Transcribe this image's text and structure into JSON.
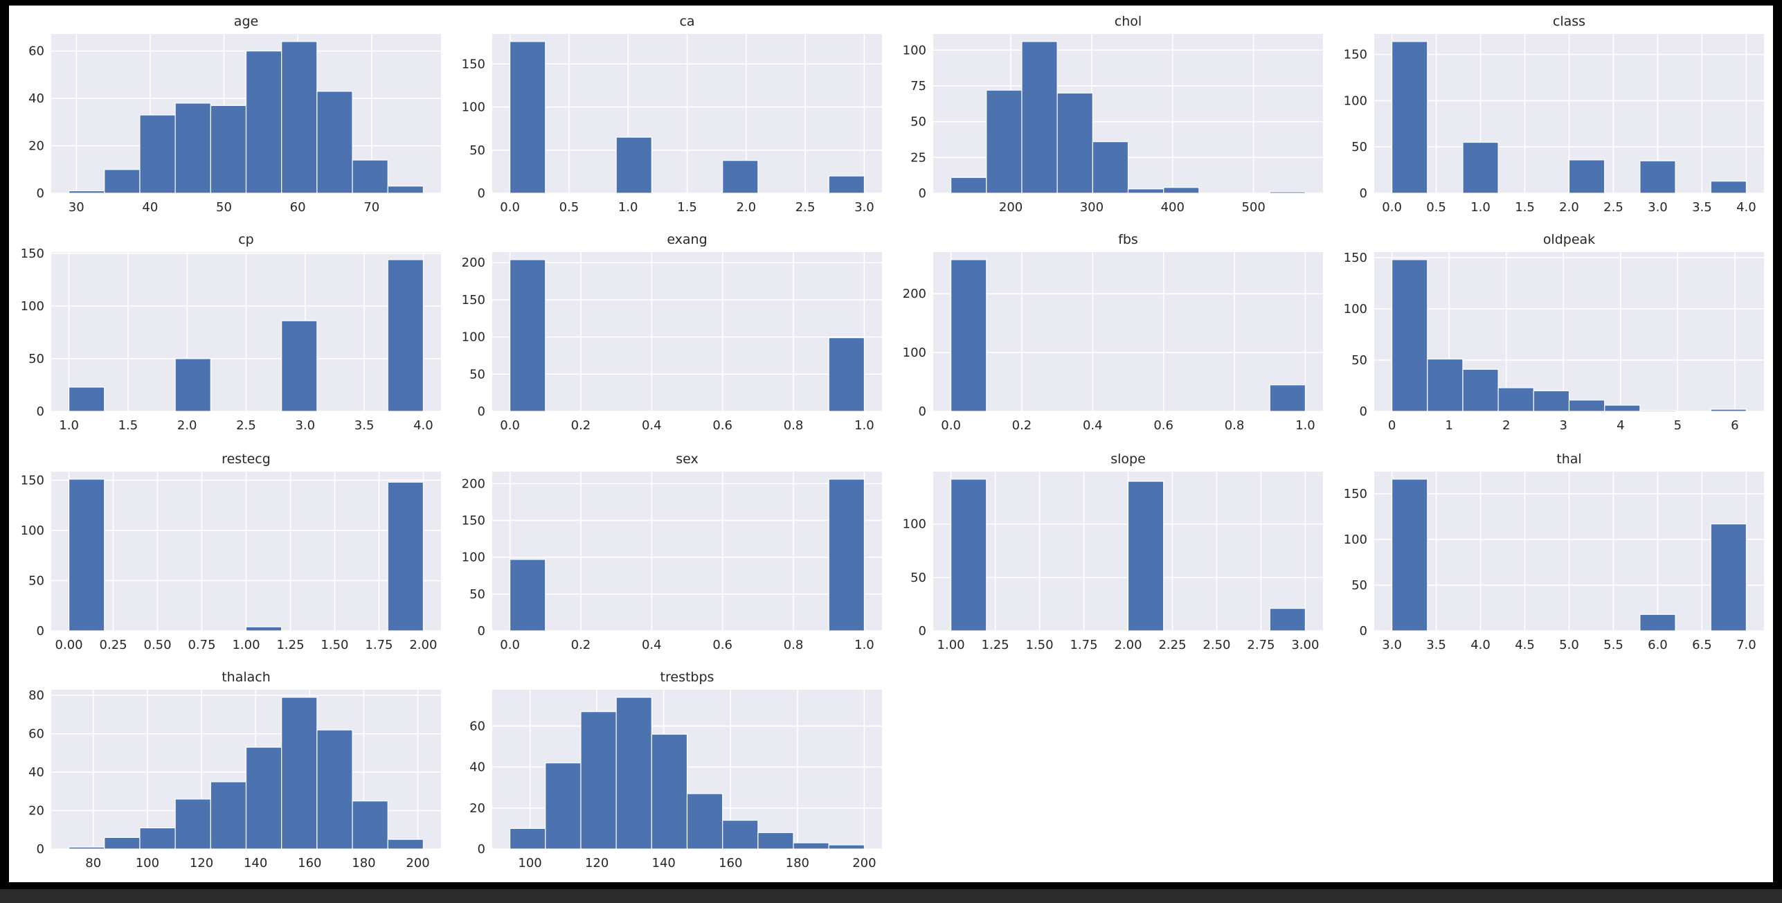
{
  "chart_data": [
    {
      "type": "histogram",
      "title": "age",
      "bins": [
        29,
        33.8,
        38.6,
        43.4,
        48.2,
        53,
        57.8,
        62.6,
        67.4,
        72.2,
        77
      ],
      "counts": [
        1,
        10,
        33,
        38,
        37,
        60,
        64,
        43,
        14,
        3
      ],
      "color": "#4c72b0",
      "grid": true,
      "xlim": [
        26.6,
        79.4
      ],
      "ylim": [
        0,
        67.2
      ],
      "xticks": [
        30,
        40,
        50,
        60,
        70
      ],
      "yticks": [
        0,
        20,
        40,
        60
      ]
    },
    {
      "type": "histogram",
      "title": "ca",
      "bins": [
        0,
        0.3,
        0.6,
        0.9,
        1.2,
        1.5,
        1.8,
        2.1,
        2.4,
        2.7,
        3
      ],
      "counts": [
        176,
        0,
        0,
        65,
        0,
        0,
        38,
        0,
        0,
        20
      ],
      "color": "#4c72b0",
      "grid": true,
      "xlim": [
        -0.15,
        3.15
      ],
      "ylim": [
        0,
        184.8
      ],
      "xticks": [
        {
          "value": 0,
          "label": "0.0"
        },
        0.5,
        {
          "value": 1,
          "label": "1.0"
        },
        1.5,
        {
          "value": 2,
          "label": "2.0"
        },
        2.5,
        {
          "value": 3,
          "label": "3.0"
        }
      ],
      "yticks": [
        0,
        50,
        100,
        150
      ]
    },
    {
      "type": "histogram",
      "title": "chol",
      "bins": [
        126,
        169.8,
        213.6,
        257.4,
        301.2,
        345,
        388.8,
        432.6,
        476.4,
        520.2,
        564
      ],
      "counts": [
        11,
        72,
        106,
        70,
        36,
        3,
        4,
        0,
        0,
        1
      ],
      "color": "#4c72b0",
      "grid": true,
      "xlim": [
        104.1,
        585.9
      ],
      "ylim": [
        0,
        111.3
      ],
      "xticks": [
        200,
        300,
        400,
        500
      ],
      "yticks": [
        0,
        25,
        50,
        75,
        100
      ]
    },
    {
      "type": "histogram",
      "title": "class",
      "bins": [
        0,
        0.4,
        0.8,
        1.2,
        1.6,
        2,
        2.4,
        2.8,
        3.2,
        3.6,
        4
      ],
      "counts": [
        164,
        0,
        55,
        0,
        0,
        36,
        0,
        35,
        0,
        13
      ],
      "color": "#4c72b0",
      "grid": true,
      "xlim": [
        -0.2,
        4.2
      ],
      "ylim": [
        0,
        172.2
      ],
      "xticks": [
        {
          "value": 0,
          "label": "0.0"
        },
        0.5,
        {
          "value": 1,
          "label": "1.0"
        },
        1.5,
        {
          "value": 2,
          "label": "2.0"
        },
        2.5,
        {
          "value": 3,
          "label": "3.0"
        },
        3.5,
        {
          "value": 4,
          "label": "4.0"
        }
      ],
      "yticks": [
        0,
        50,
        100,
        150
      ]
    },
    {
      "type": "histogram",
      "title": "cp",
      "bins": [
        1,
        1.3,
        1.6,
        1.9,
        2.2,
        2.5,
        2.8,
        3.1,
        3.4,
        3.7,
        4
      ],
      "counts": [
        23,
        0,
        0,
        50,
        0,
        0,
        86,
        0,
        0,
        144
      ],
      "color": "#4c72b0",
      "grid": true,
      "xlim": [
        0.85,
        4.15
      ],
      "ylim": [
        0,
        151.2
      ],
      "xticks": [
        {
          "value": 1,
          "label": "1.0"
        },
        1.5,
        {
          "value": 2,
          "label": "2.0"
        },
        2.5,
        {
          "value": 3,
          "label": "3.0"
        },
        3.5,
        {
          "value": 4,
          "label": "4.0"
        }
      ],
      "yticks": [
        0,
        50,
        100,
        150
      ]
    },
    {
      "type": "histogram",
      "title": "exang",
      "bins": [
        0,
        0.1,
        0.2,
        0.3,
        0.4,
        0.5,
        0.6,
        0.7,
        0.8,
        0.9,
        1
      ],
      "counts": [
        204,
        0,
        0,
        0,
        0,
        0,
        0,
        0,
        0,
        99
      ],
      "color": "#4c72b0",
      "grid": true,
      "xlim": [
        -0.05,
        1.05
      ],
      "ylim": [
        0,
        214.2
      ],
      "xticks": [
        {
          "value": 0,
          "label": "0.0"
        },
        0.2,
        0.4,
        0.6,
        0.8,
        {
          "value": 1,
          "label": "1.0"
        }
      ],
      "yticks": [
        0,
        50,
        100,
        150,
        200
      ]
    },
    {
      "type": "histogram",
      "title": "fbs",
      "bins": [
        0,
        0.1,
        0.2,
        0.3,
        0.4,
        0.5,
        0.6,
        0.7,
        0.8,
        0.9,
        1
      ],
      "counts": [
        258,
        0,
        0,
        0,
        0,
        0,
        0,
        0,
        0,
        45
      ],
      "color": "#4c72b0",
      "grid": true,
      "xlim": [
        -0.05,
        1.05
      ],
      "ylim": [
        0,
        270.9
      ],
      "xticks": [
        {
          "value": 0,
          "label": "0.0"
        },
        0.2,
        0.4,
        0.6,
        0.8,
        {
          "value": 1,
          "label": "1.0"
        }
      ],
      "yticks": [
        0,
        100,
        200
      ]
    },
    {
      "type": "histogram",
      "title": "oldpeak",
      "bins": [
        0,
        0.62,
        1.24,
        1.86,
        2.48,
        3.1,
        3.72,
        4.34,
        4.96,
        5.58,
        6.2
      ],
      "counts": [
        148,
        51,
        41,
        23,
        20,
        11,
        6,
        1,
        0,
        2
      ],
      "color": "#4c72b0",
      "grid": true,
      "xlim": [
        -0.31,
        6.51
      ],
      "ylim": [
        0,
        155.4
      ],
      "xticks": [
        0,
        1,
        2,
        3,
        4,
        5,
        6
      ],
      "yticks": [
        0,
        50,
        100,
        150
      ]
    },
    {
      "type": "histogram",
      "title": "restecg",
      "bins": [
        0,
        0.2,
        0.4,
        0.6,
        0.8,
        1,
        1.2,
        1.4,
        1.6,
        1.8,
        2
      ],
      "counts": [
        151,
        0,
        0,
        0,
        0,
        4,
        0,
        0,
        0,
        148
      ],
      "color": "#4c72b0",
      "grid": true,
      "xlim": [
        -0.1,
        2.1
      ],
      "ylim": [
        0,
        158.55
      ],
      "xticks": [
        {
          "value": 0,
          "label": "0.00"
        },
        0.25,
        {
          "value": 0.5,
          "label": "0.50"
        },
        0.75,
        {
          "value": 1,
          "label": "1.00"
        },
        1.25,
        {
          "value": 1.5,
          "label": "1.50"
        },
        1.75,
        {
          "value": 2,
          "label": "2.00"
        }
      ],
      "yticks": [
        0,
        50,
        100,
        150
      ]
    },
    {
      "type": "histogram",
      "title": "sex",
      "bins": [
        0,
        0.1,
        0.2,
        0.3,
        0.4,
        0.5,
        0.6,
        0.7,
        0.8,
        0.9,
        1
      ],
      "counts": [
        97,
        0,
        0,
        0,
        0,
        0,
        0,
        0,
        0,
        206
      ],
      "color": "#4c72b0",
      "grid": true,
      "xlim": [
        -0.05,
        1.05
      ],
      "ylim": [
        0,
        216.3
      ],
      "xticks": [
        {
          "value": 0,
          "label": "0.0"
        },
        0.2,
        0.4,
        0.6,
        0.8,
        {
          "value": 1,
          "label": "1.0"
        }
      ],
      "yticks": [
        0,
        50,
        100,
        150,
        200
      ]
    },
    {
      "type": "histogram",
      "title": "slope",
      "bins": [
        1,
        1.2,
        1.4,
        1.6,
        1.8,
        2,
        2.2,
        2.4,
        2.6,
        2.8,
        3
      ],
      "counts": [
        142,
        0,
        0,
        0,
        0,
        140,
        0,
        0,
        0,
        21
      ],
      "color": "#4c72b0",
      "grid": true,
      "xlim": [
        0.9,
        3.1
      ],
      "ylim": [
        0,
        149.1
      ],
      "xticks": [
        {
          "value": 1,
          "label": "1.00"
        },
        1.25,
        {
          "value": 1.5,
          "label": "1.50"
        },
        1.75,
        {
          "value": 2,
          "label": "2.00"
        },
        2.25,
        {
          "value": 2.5,
          "label": "2.50"
        },
        2.75,
        {
          "value": 3,
          "label": "3.00"
        }
      ],
      "yticks": [
        0,
        50,
        100
      ]
    },
    {
      "type": "histogram",
      "title": "thal",
      "bins": [
        3,
        3.4,
        3.8,
        4.2,
        4.6,
        5,
        5.4,
        5.8,
        6.2,
        6.6,
        7
      ],
      "counts": [
        166,
        0,
        0,
        0,
        0,
        0,
        0,
        18,
        0,
        117
      ],
      "color": "#4c72b0",
      "grid": true,
      "xlim": [
        2.8,
        7.2
      ],
      "ylim": [
        0,
        174.3
      ],
      "xticks": [
        {
          "value": 3,
          "label": "3.0"
        },
        3.5,
        {
          "value": 4,
          "label": "4.0"
        },
        4.5,
        {
          "value": 5,
          "label": "5.0"
        },
        5.5,
        {
          "value": 6,
          "label": "6.0"
        },
        6.5,
        {
          "value": 7,
          "label": "7.0"
        }
      ],
      "yticks": [
        0,
        50,
        100,
        150
      ]
    },
    {
      "type": "histogram",
      "title": "thalach",
      "bins": [
        71,
        84.1,
        97.2,
        110.3,
        123.4,
        136.5,
        149.6,
        162.7,
        175.8,
        188.9,
        202
      ],
      "counts": [
        1,
        6,
        11,
        26,
        35,
        53,
        79,
        62,
        25,
        5
      ],
      "color": "#4c72b0",
      "grid": true,
      "xlim": [
        64.45,
        208.55
      ],
      "ylim": [
        0,
        82.95
      ],
      "xticks": [
        80,
        100,
        120,
        140,
        160,
        180,
        200
      ],
      "yticks": [
        0,
        20,
        40,
        60,
        80
      ]
    },
    {
      "type": "histogram",
      "title": "trestbps",
      "bins": [
        94,
        104.6,
        115.2,
        125.8,
        136.4,
        147,
        157.6,
        168.2,
        178.8,
        189.4,
        200
      ],
      "counts": [
        10,
        42,
        67,
        74,
        56,
        27,
        14,
        8,
        3,
        2
      ],
      "color": "#4c72b0",
      "grid": true,
      "xlim": [
        88.7,
        205.3
      ],
      "ylim": [
        0,
        77.7
      ],
      "xticks": [
        100,
        120,
        140,
        160,
        180,
        200
      ],
      "yticks": [
        0,
        20,
        40,
        60
      ]
    }
  ]
}
